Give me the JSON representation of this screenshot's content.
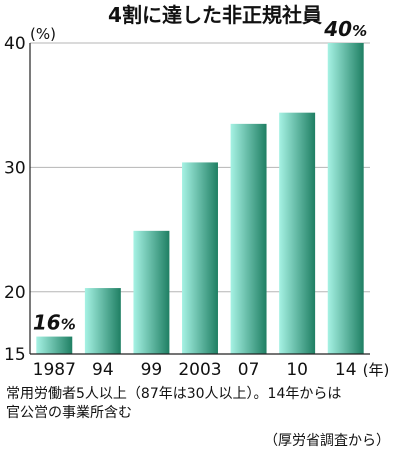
{
  "chart_data": {
    "type": "bar",
    "title": "4割に達した非正規社員",
    "y_unit": "(%)",
    "x_unit": "(年)",
    "categories": [
      "1987",
      "94",
      "99",
      "2003",
      "07",
      "10",
      "14"
    ],
    "values": [
      16.4,
      20.3,
      24.9,
      30.4,
      33.5,
      34.4,
      40.0
    ],
    "ylim": [
      15,
      40
    ],
    "yticks": [
      "15",
      "20",
      "30",
      "40"
    ],
    "ytick_values": [
      15,
      20,
      30,
      40
    ],
    "grid": true,
    "data_labels": [
      {
        "category_index": 0,
        "number": "16",
        "suffix": "%"
      },
      {
        "category_index": 6,
        "number": "40",
        "suffix": "%"
      }
    ],
    "color_light": "#a6f2e4",
    "color_dark": "#1f7f63"
  },
  "notes": {
    "line1": "常用労働者5人以上（87年は30人以上）。14年からは",
    "line2": "官公営の事業所含む",
    "source": "（厚労省調査から）"
  }
}
